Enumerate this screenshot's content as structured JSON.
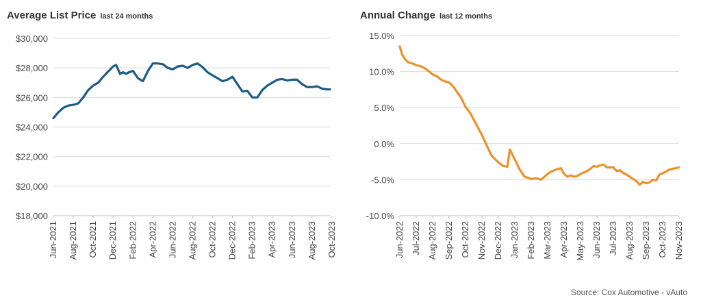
{
  "source_text": "Source: Cox Automotive - vAuto",
  "colors": {
    "left_line": "#1b5a86",
    "right_line": "#ec9127",
    "grid": "#d9d9d9"
  },
  "chart_data": [
    {
      "type": "line",
      "title": "Average List Price",
      "subtitle": "last 24 months",
      "ylim": [
        18000,
        30000
      ],
      "y_ticks": [
        18000,
        20000,
        22000,
        24000,
        26000,
        28000,
        30000
      ],
      "y_tick_labels": [
        "$18,000",
        "$20,000",
        "$22,000",
        "$24,000",
        "$26,000",
        "$28,000",
        "$30,000"
      ],
      "x_tick_labels": [
        "Jun-2021",
        "Aug-2021",
        "Oct-2021",
        "Dec-2021",
        "Feb-2022",
        "Apr-2022",
        "Jun-2022",
        "Aug-2022",
        "Oct-2022",
        "Dec-2022",
        "Feb-2023",
        "Apr-2023",
        "Jun-2023",
        "Aug-2023",
        "Oct-2023"
      ],
      "x_range_months": [
        0,
        27.8
      ],
      "grid": "horizontal",
      "series": [
        {
          "x": [
            0,
            0.5,
            1,
            1.5,
            2,
            2.5,
            3,
            3.5,
            4,
            4.5,
            5,
            5.5,
            6,
            6.3,
            6.7,
            7,
            7.3,
            7.6,
            8,
            8.5,
            9,
            9.5,
            10,
            10.5,
            11,
            11.5,
            12,
            12.5,
            13,
            13.5,
            14,
            14.5,
            15,
            15.5,
            16,
            16.5,
            17,
            17.5,
            18,
            18.5,
            19,
            19.5,
            20,
            20.5,
            21,
            21.5,
            22,
            22.5,
            23,
            23.5,
            24,
            24.5,
            25,
            25.5,
            26,
            26.5,
            27,
            27.5,
            27.8
          ],
          "values": [
            24600,
            25000,
            25300,
            25450,
            25500,
            25600,
            26000,
            26500,
            26800,
            27000,
            27400,
            27750,
            28100,
            28200,
            27600,
            27700,
            27600,
            27700,
            27800,
            27300,
            27100,
            27800,
            28300,
            28300,
            28250,
            28000,
            27900,
            28100,
            28150,
            28000,
            28200,
            28300,
            28050,
            27700,
            27500,
            27300,
            27100,
            27200,
            27400,
            26900,
            26400,
            26450,
            26000,
            26000,
            26500,
            26800,
            27000,
            27200,
            27250,
            27150,
            27200,
            27200,
            26900,
            26700,
            26700,
            26750,
            26600,
            26550,
            26550
          ]
        }
      ]
    },
    {
      "type": "line",
      "title": "Annual Change",
      "subtitle": "last 12 months",
      "ylim": [
        -10,
        15
      ],
      "y_ticks": [
        -10,
        -5,
        0,
        5,
        10,
        15
      ],
      "y_tick_labels": [
        "-10.0%",
        "-5.0%",
        "0.0%",
        "5.0%",
        "10.0%",
        "15.0%"
      ],
      "x_tick_labels": [
        "Jun-2022",
        "Jul-2022",
        "Aug-2022",
        "Sep-2022",
        "Oct-2022",
        "Nov-2022",
        "Dec-2022",
        "Jan-2023",
        "Feb-2023",
        "Mar-2023",
        "Apr-2023",
        "May-2023",
        "Jun-2023",
        "Jul-2023",
        "Aug-2023",
        "Sep-2023",
        "Oct-2023",
        "Nov-2023"
      ],
      "x_range_months": [
        0,
        17
      ],
      "grid": "horizontal",
      "series": [
        {
          "x": [
            0,
            0.15,
            0.3,
            0.5,
            0.8,
            1,
            1.3,
            1.5,
            1.8,
            2,
            2.3,
            2.5,
            2.8,
            3,
            3.3,
            3.5,
            3.7,
            4,
            4.3,
            4.6,
            5,
            5.3,
            5.6,
            6,
            6.3,
            6.55,
            6.7,
            7,
            7.3,
            7.6,
            8,
            8.3,
            8.6,
            9,
            9.2,
            9.5,
            9.8,
            10,
            10.2,
            10.4,
            10.6,
            10.8,
            11,
            11.2,
            11.4,
            11.6,
            11.8,
            12,
            12.2,
            12.4,
            12.6,
            12.8,
            13,
            13.2,
            13.4,
            13.6,
            13.8,
            14,
            14.2,
            14.4,
            14.6,
            14.8,
            15,
            15.2,
            15.4,
            15.6,
            15.8,
            16,
            16.2,
            16.4,
            16.6,
            16.8,
            17
          ],
          "values": [
            13.5,
            12.3,
            11.8,
            11.3,
            11.1,
            10.9,
            10.7,
            10.5,
            10.0,
            9.6,
            9.3,
            8.9,
            8.6,
            8.5,
            7.8,
            7.1,
            6.5,
            5.1,
            4.2,
            2.9,
            1.2,
            -0.3,
            -1.7,
            -2.6,
            -3.1,
            -3.2,
            -0.8,
            -2.2,
            -3.6,
            -4.6,
            -4.9,
            -4.8,
            -5.0,
            -4.2,
            -3.9,
            -3.6,
            -3.4,
            -4.2,
            -4.6,
            -4.4,
            -4.6,
            -4.5,
            -4.2,
            -4.0,
            -3.8,
            -3.5,
            -3.1,
            -3.2,
            -3.0,
            -2.9,
            -3.3,
            -3.3,
            -3.3,
            -3.8,
            -3.7,
            -4.1,
            -4.3,
            -4.6,
            -4.9,
            -5.2,
            -5.7,
            -5.3,
            -5.5,
            -5.4,
            -5.0,
            -5.1,
            -4.3,
            -4.1,
            -3.9,
            -3.6,
            -3.5,
            -3.4,
            -3.3
          ]
        }
      ]
    }
  ]
}
